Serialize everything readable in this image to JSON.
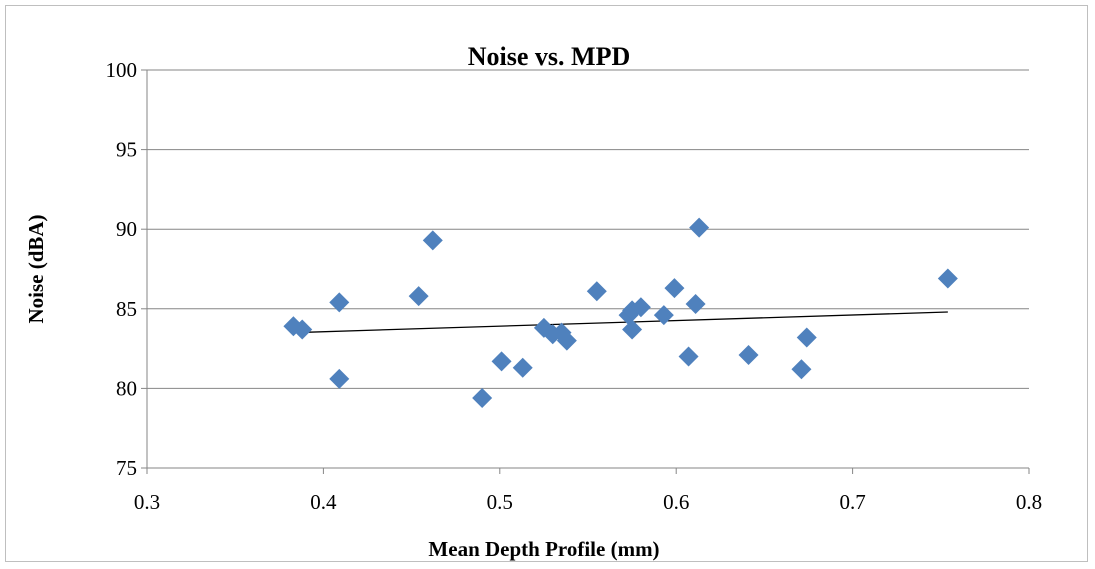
{
  "chart_data": {
    "type": "scatter",
    "title": "Noise vs. MPD",
    "xlabel": "Mean Depth Profile (mm)",
    "ylabel": "Noise (dBA)",
    "xlim": [
      0.3,
      0.8
    ],
    "ylim": [
      75,
      100
    ],
    "x_ticks": [
      "0.3",
      "0.4",
      "0.5",
      "0.6",
      "0.7",
      "0.8"
    ],
    "y_ticks": [
      "75",
      "80",
      "85",
      "90",
      "95",
      "100"
    ],
    "grid": "horizontal",
    "legend": "none",
    "marker_color": "#4f81bd",
    "trendline_color": "#000000",
    "series": [
      {
        "x": [
          0.383,
          0.388,
          0.409,
          0.409,
          0.454,
          0.462,
          0.49,
          0.501,
          0.513,
          0.525,
          0.53,
          0.535,
          0.538,
          0.555,
          0.573,
          0.575,
          0.575,
          0.58,
          0.593,
          0.599,
          0.607,
          0.611,
          0.613,
          0.641,
          0.671,
          0.674,
          0.754
        ],
        "y": [
          83.9,
          83.7,
          85.4,
          80.6,
          85.8,
          89.3,
          79.4,
          81.7,
          81.3,
          83.8,
          83.4,
          83.5,
          83.0,
          86.1,
          84.6,
          84.9,
          83.7,
          85.1,
          84.6,
          86.3,
          82.0,
          85.3,
          90.1,
          82.1,
          81.2,
          83.2,
          86.9
        ]
      }
    ],
    "trendline": {
      "x": [
        0.383,
        0.754
      ],
      "y": [
        83.5,
        84.8
      ]
    }
  }
}
